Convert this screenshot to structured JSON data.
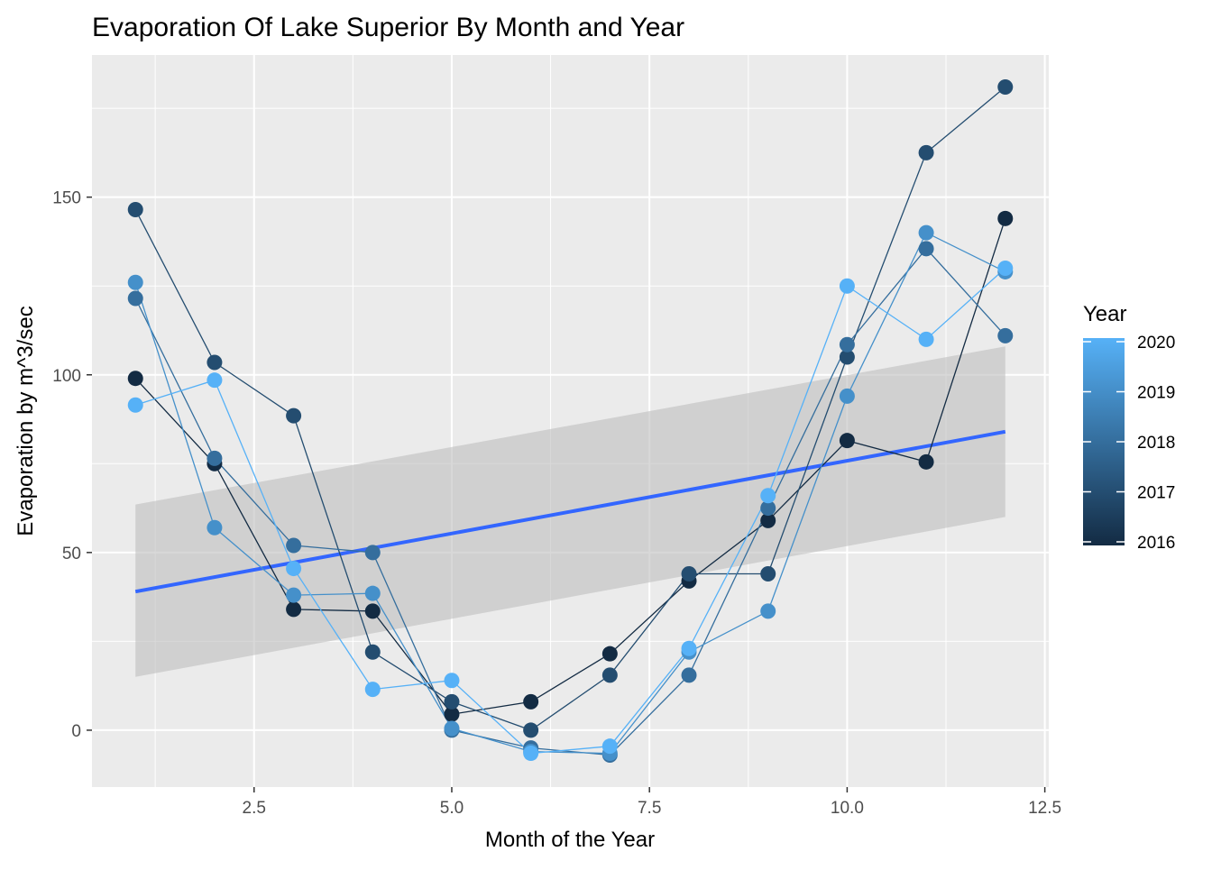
{
  "chart_data": {
    "type": "scatter",
    "title": "Evaporation Of Lake Superior By Month and Year",
    "xlabel": "Month of the Year",
    "ylabel": "Evaporation by m^3/sec",
    "xlim": [
      0.45,
      12.55
    ],
    "ylim": [
      -16,
      190
    ],
    "x_ticks": [
      2.5,
      5.0,
      7.5,
      10.0,
      12.5
    ],
    "x_tick_labels": [
      "2.5",
      "5.0",
      "7.5",
      "10.0",
      "12.5"
    ],
    "y_ticks": [
      0,
      50,
      100,
      150
    ],
    "y_tick_labels": [
      "0",
      "50",
      "100",
      "150"
    ],
    "grid": true,
    "legend": {
      "title": "Year",
      "placement": "right",
      "type": "colorbar",
      "min": 2016,
      "max": 2020,
      "tick_labels": [
        "2020",
        "2019",
        "2018",
        "2017",
        "2016"
      ],
      "low_color": "#132B43",
      "high_color": "#56B1F7"
    },
    "points": [
      {
        "month": 1,
        "year": 2016,
        "value": 99
      },
      {
        "month": 1,
        "year": 2017,
        "value": 146.5
      },
      {
        "month": 1,
        "year": 2018,
        "value": 121.5
      },
      {
        "month": 1,
        "year": 2019,
        "value": 126
      },
      {
        "month": 1,
        "year": 2020,
        "value": 91.5
      },
      {
        "month": 2,
        "year": 2016,
        "value": 75
      },
      {
        "month": 2,
        "year": 2017,
        "value": 103.5
      },
      {
        "month": 2,
        "year": 2018,
        "value": 76.5
      },
      {
        "month": 2,
        "year": 2019,
        "value": 57
      },
      {
        "month": 2,
        "year": 2020,
        "value": 98.5
      },
      {
        "month": 3,
        "year": 2016,
        "value": 34
      },
      {
        "month": 3,
        "year": 2017,
        "value": 88.5
      },
      {
        "month": 3,
        "year": 2018,
        "value": 52
      },
      {
        "month": 3,
        "year": 2019,
        "value": 38
      },
      {
        "month": 3,
        "year": 2020,
        "value": 45.5
      },
      {
        "month": 4,
        "year": 2016,
        "value": 33.5
      },
      {
        "month": 4,
        "year": 2017,
        "value": 22
      },
      {
        "month": 4,
        "year": 2018,
        "value": 50
      },
      {
        "month": 4,
        "year": 2019,
        "value": 38.5
      },
      {
        "month": 4,
        "year": 2020,
        "value": 11.5
      },
      {
        "month": 5,
        "year": 2016,
        "value": 4.5
      },
      {
        "month": 5,
        "year": 2017,
        "value": 8
      },
      {
        "month": 5,
        "year": 2018,
        "value": 0
      },
      {
        "month": 5,
        "year": 2019,
        "value": 0.5
      },
      {
        "month": 5,
        "year": 2020,
        "value": 14
      },
      {
        "month": 6,
        "year": 2016,
        "value": 8
      },
      {
        "month": 6,
        "year": 2017,
        "value": 0
      },
      {
        "month": 6,
        "year": 2018,
        "value": -5
      },
      {
        "month": 6,
        "year": 2019,
        "value": -6
      },
      {
        "month": 6,
        "year": 2020,
        "value": -6.5
      },
      {
        "month": 7,
        "year": 2016,
        "value": 21.5
      },
      {
        "month": 7,
        "year": 2017,
        "value": 15.5
      },
      {
        "month": 7,
        "year": 2018,
        "value": -7
      },
      {
        "month": 7,
        "year": 2019,
        "value": -6.5
      },
      {
        "month": 7,
        "year": 2020,
        "value": -4.5
      },
      {
        "month": 8,
        "year": 2016,
        "value": 42
      },
      {
        "month": 8,
        "year": 2017,
        "value": 44
      },
      {
        "month": 8,
        "year": 2018,
        "value": 15.5
      },
      {
        "month": 8,
        "year": 2019,
        "value": 22
      },
      {
        "month": 8,
        "year": 2020,
        "value": 23
      },
      {
        "month": 9,
        "year": 2016,
        "value": 59
      },
      {
        "month": 9,
        "year": 2017,
        "value": 44
      },
      {
        "month": 9,
        "year": 2018,
        "value": 62.5
      },
      {
        "month": 9,
        "year": 2019,
        "value": 33.5
      },
      {
        "month": 9,
        "year": 2020,
        "value": 66
      },
      {
        "month": 10,
        "year": 2016,
        "value": 81.5
      },
      {
        "month": 10,
        "year": 2017,
        "value": 105
      },
      {
        "month": 10,
        "year": 2018,
        "value": 108.5
      },
      {
        "month": 10,
        "year": 2019,
        "value": 94
      },
      {
        "month": 10,
        "year": 2020,
        "value": 125
      },
      {
        "month": 11,
        "year": 2016,
        "value": 75.5
      },
      {
        "month": 11,
        "year": 2017,
        "value": 162.5
      },
      {
        "month": 11,
        "year": 2018,
        "value": 135.5
      },
      {
        "month": 11,
        "year": 2019,
        "value": 140
      },
      {
        "month": 11,
        "year": 2020,
        "value": 110
      },
      {
        "month": 12,
        "year": 2016,
        "value": 144
      },
      {
        "month": 12,
        "year": 2017,
        "value": 181
      },
      {
        "month": 12,
        "year": 2018,
        "value": 111
      },
      {
        "month": 12,
        "year": 2019,
        "value": 129
      },
      {
        "month": 12,
        "year": 2020,
        "value": 130
      }
    ],
    "trend": {
      "type": "linear",
      "x": [
        1,
        12
      ],
      "y": [
        39,
        84
      ],
      "ci_lower": [
        15,
        60
      ],
      "ci_upper": [
        63.5,
        108
      ],
      "color": "#3366FF"
    },
    "colors": {
      "panel": "#EBEBEB",
      "grid_major": "#FFFFFF",
      "ribbon": "#BEBEBE",
      "axis_text": "#4D4D4D"
    }
  }
}
